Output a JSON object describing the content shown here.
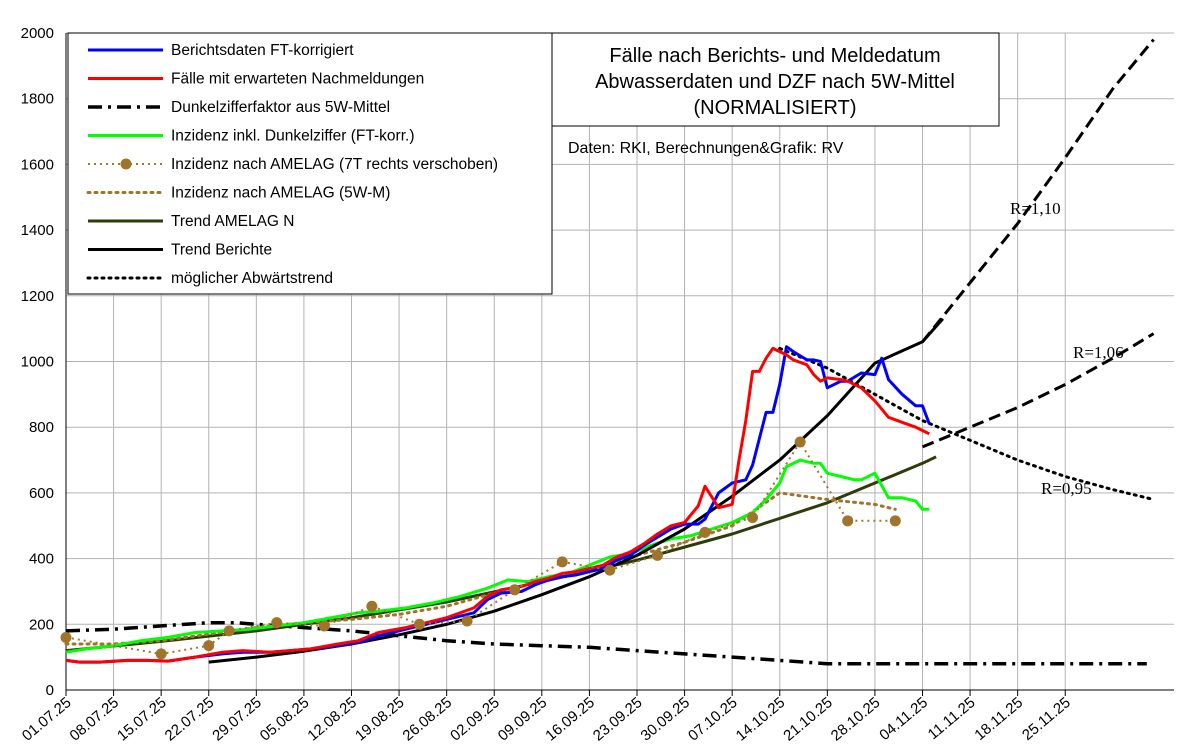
{
  "chart_data": {
    "type": "line",
    "title_lines": [
      "Fälle nach Berichts- und Meldedatum",
      "Abwasserdaten und DZF nach 5W-Mittel",
      "(NORMALISIERT)"
    ],
    "source": "Daten: RKI, Berechnungen&Grafik: RV",
    "ylim": [
      0,
      2000
    ],
    "y_ticks": [
      0,
      200,
      400,
      600,
      800,
      1000,
      1200,
      1400,
      1600,
      1800,
      2000
    ],
    "x_range_dates": [
      "01.07.25",
      "11.12.25"
    ],
    "x_tick_labels": [
      "01.07.25",
      "08.07.25",
      "15.07.25",
      "22.07.25",
      "29.07.25",
      "05.08.25",
      "12.08.25",
      "19.08.25",
      "26.08.25",
      "02.09.25",
      "09.09.25",
      "16.09.25",
      "23.09.25",
      "30.09.25",
      "07.10.25",
      "14.10.25",
      "21.10.25",
      "28.10.25",
      "04.11.25",
      "11.11.25",
      "18.11.25",
      "25.11.25"
    ],
    "grid": true,
    "legend_position": "top-left",
    "colors": {
      "berichtsdaten": "#0000ff",
      "nachmeldungen": "#ff0000",
      "dunkelziffer": "#000000",
      "inzidenz_dz": "#00ff00",
      "amelag": "#a0742a",
      "trend_amelag": "#2e3b0a",
      "trend_berichte": "#000000"
    },
    "series": [
      {
        "name": "Berichtsdaten FT-korrigiert",
        "style": "solid",
        "color": "#0000ff",
        "x": [
          "01.07.25",
          "03.07.25",
          "06.07.25",
          "10.07.25",
          "13.07.25",
          "16.07.25",
          "20.07.25",
          "24.07.25",
          "27.07.25",
          "31.07.25",
          "03.08.25",
          "06.08.25",
          "10.08.25",
          "13.08.25",
          "16.08.25",
          "20.08.25",
          "23.08.25",
          "26.08.25",
          "30.08.25",
          "01.09.25",
          "03.09.25",
          "06.09.25",
          "08.09.25",
          "10.09.25",
          "12.09.25",
          "14.09.25",
          "16.09.25",
          "18.09.25",
          "20.09.25",
          "22.09.25",
          "24.09.25",
          "26.09.25",
          "28.09.25",
          "30.09.25",
          "02.10.25",
          "03.10.25",
          "05.10.25",
          "07.10.25",
          "09.10.25",
          "10.10.25",
          "12.10.25",
          "13.10.25",
          "14.10.25",
          "15.10.25",
          "16.10.25",
          "18.10.25",
          "19.10.25",
          "20.10.25",
          "21.10.25",
          "23.10.25",
          "24.10.25",
          "26.10.25",
          "28.10.25",
          "29.10.25",
          "30.10.25",
          "01.11.25",
          "03.11.25",
          "04.11.25",
          "05.11.25"
        ],
        "values": [
          90,
          85,
          85,
          90,
          90,
          88,
          100,
          110,
          115,
          115,
          120,
          125,
          135,
          145,
          165,
          185,
          200,
          215,
          235,
          275,
          295,
          300,
          320,
          335,
          345,
          350,
          360,
          370,
          395,
          410,
          440,
          465,
          490,
          505,
          505,
          520,
          600,
          630,
          640,
          685,
          845,
          845,
          930,
          1045,
          1030,
          1005,
          1005,
          1000,
          920,
          940,
          940,
          965,
          960,
          1010,
          945,
          900,
          865,
          865,
          810
        ]
      },
      {
        "name": "Fälle mit erwarteten Nachmeldungen",
        "style": "solid",
        "color": "#ff0000",
        "x": [
          "01.07.25",
          "03.07.25",
          "06.07.25",
          "10.07.25",
          "13.07.25",
          "16.07.25",
          "20.07.25",
          "24.07.25",
          "27.07.25",
          "31.07.25",
          "03.08.25",
          "06.08.25",
          "10.08.25",
          "13.08.25",
          "16.08.25",
          "20.08.25",
          "23.08.25",
          "26.08.25",
          "30.08.25",
          "01.09.25",
          "03.09.25",
          "06.09.25",
          "08.09.25",
          "10.09.25",
          "12.09.25",
          "14.09.25",
          "16.09.25",
          "18.09.25",
          "20.09.25",
          "22.09.25",
          "24.09.25",
          "26.09.25",
          "28.09.25",
          "30.09.25",
          "02.10.25",
          "03.10.25",
          "05.10.25",
          "07.10.25",
          "08.10.25",
          "09.10.25",
          "10.10.25",
          "11.10.25",
          "12.10.25",
          "13.10.25",
          "14.10.25",
          "15.10.25",
          "16.10.25",
          "18.10.25",
          "19.10.25",
          "20.10.25",
          "21.10.25",
          "23.10.25",
          "24.10.25",
          "26.10.25",
          "28.10.25",
          "29.10.25",
          "30.10.25",
          "01.11.25",
          "03.11.25",
          "04.11.25",
          "05.11.25"
        ],
        "values": [
          90,
          85,
          85,
          90,
          90,
          88,
          100,
          115,
          120,
          115,
          120,
          125,
          140,
          150,
          175,
          190,
          205,
          220,
          250,
          285,
          305,
          315,
          330,
          340,
          355,
          360,
          370,
          380,
          405,
          420,
          445,
          475,
          500,
          510,
          560,
          620,
          555,
          565,
          700,
          820,
          970,
          970,
          1010,
          1040,
          1030,
          1020,
          1005,
          990,
          960,
          940,
          950,
          945,
          940,
          920,
          880,
          855,
          830,
          815,
          800,
          790,
          780
        ]
      },
      {
        "name": "Dunkelzifferfaktor aus 5W-Mittel",
        "style": "dashdot",
        "color": "#000000",
        "x": [
          "01.07.25",
          "08.07.25",
          "15.07.25",
          "22.07.25",
          "26.07.25",
          "29.07.25",
          "05.08.25",
          "12.08.25",
          "19.08.25",
          "26.08.25",
          "02.09.25",
          "09.09.25",
          "16.09.25",
          "23.09.25",
          "30.09.25",
          "07.10.25",
          "14.10.25",
          "21.10.25",
          "28.10.25",
          "04.11.25",
          "11.11.25",
          "18.11.25",
          "25.11.25",
          "02.12.25",
          "07.12.25"
        ],
        "values": [
          180,
          185,
          195,
          205,
          205,
          200,
          190,
          180,
          165,
          150,
          140,
          135,
          130,
          120,
          110,
          100,
          90,
          80,
          80,
          80,
          80,
          80,
          80,
          80,
          80
        ]
      },
      {
        "name": "Inzidenz inkl. Dunkelziffer (FT-korr.)",
        "style": "solid",
        "color": "#00ff00",
        "x": [
          "01.07.25",
          "04.07.25",
          "08.07.25",
          "12.07.25",
          "16.07.25",
          "20.07.25",
          "24.07.25",
          "28.07.25",
          "01.08.25",
          "05.08.25",
          "09.08.25",
          "13.08.25",
          "16.08.25",
          "20.08.25",
          "24.08.25",
          "28.08.25",
          "01.09.25",
          "04.09.25",
          "07.09.25",
          "10.09.25",
          "13.09.25",
          "16.09.25",
          "19.09.25",
          "22.09.25",
          "25.09.25",
          "28.09.25",
          "01.10.25",
          "04.10.25",
          "07.10.25",
          "10.10.25",
          "12.10.25",
          "14.10.25",
          "15.10.25",
          "17.10.25",
          "19.10.25",
          "20.10.25",
          "21.10.25",
          "23.10.25",
          "25.10.25",
          "26.10.25",
          "28.10.25",
          "30.10.25",
          "01.11.25",
          "03.11.25",
          "04.11.25",
          "05.11.25"
        ],
        "values": [
          115,
          125,
          135,
          150,
          160,
          175,
          180,
          185,
          195,
          205,
          220,
          235,
          240,
          250,
          265,
          285,
          310,
          335,
          330,
          345,
          355,
          380,
          405,
          415,
          440,
          460,
          470,
          490,
          510,
          540,
          580,
          630,
          680,
          700,
          690,
          690,
          660,
          650,
          640,
          640,
          660,
          585,
          585,
          575,
          550,
          550
        ]
      },
      {
        "name": "Inzidenz nach AMELAG (7T rechts verschoben)",
        "style": "dotted-markers",
        "color": "#a0742a",
        "x": [
          "01.07.25",
          "15.07.25",
          "22.07.25",
          "25.07.25",
          "01.08.25",
          "08.08.25",
          "15.08.25",
          "22.08.25",
          "29.08.25",
          "05.09.25",
          "12.09.25",
          "19.09.25",
          "26.09.25",
          "03.10.25",
          "10.10.25",
          "17.10.25",
          "24.10.25",
          "31.10.25"
        ],
        "values": [
          160,
          110,
          135,
          180,
          205,
          195,
          255,
          200,
          210,
          305,
          390,
          365,
          410,
          480,
          525,
          755,
          515,
          515
        ]
      },
      {
        "name": "Inzidenz nach AMELAG (5W-M)",
        "style": "dotted",
        "color": "#a0742a",
        "x": [
          "01.07.25",
          "08.07.25",
          "15.07.25",
          "22.07.25",
          "29.07.25",
          "05.08.25",
          "12.08.25",
          "19.08.25",
          "26.08.25",
          "02.09.25",
          "09.09.25",
          "16.09.25",
          "23.09.25",
          "30.09.25",
          "07.10.25",
          "14.10.25",
          "21.10.25",
          "28.10.25",
          "31.10.25"
        ],
        "values": [
          140,
          140,
          150,
          170,
          190,
          205,
          215,
          230,
          255,
          295,
          330,
          365,
          410,
          450,
          500,
          600,
          580,
          565,
          550
        ]
      },
      {
        "name": "Trend AMELAG N",
        "style": "solid",
        "color": "#2e3b0a",
        "x": [
          "01.07.25",
          "15.07.25",
          "29.07.25",
          "12.08.25",
          "26.08.25",
          "09.09.25",
          "23.09.25",
          "07.10.25",
          "21.10.25",
          "04.11.25",
          "06.11.25"
        ],
        "values": [
          120,
          148,
          180,
          220,
          268,
          330,
          395,
          475,
          570,
          690,
          710
        ]
      },
      {
        "name": "Trend Berichte",
        "style": "solid",
        "color": "#000000",
        "x": [
          "22.07.25",
          "29.07.25",
          "05.08.25",
          "12.08.25",
          "19.08.25",
          "26.08.25",
          "02.09.25",
          "09.09.25",
          "16.09.25",
          "23.09.25",
          "30.09.25",
          "07.10.25",
          "14.10.25",
          "21.10.25",
          "28.10.25",
          "04.11.25",
          "07.11.25"
        ],
        "values": [
          85,
          100,
          118,
          140,
          168,
          200,
          240,
          290,
          345,
          410,
          490,
          590,
          700,
          835,
          995,
          1060,
          1130
        ]
      },
      {
        "name": "möglicher Abwärtstrend",
        "style": "dotted",
        "color": "#000000",
        "x": [
          "14.10.25",
          "21.10.25",
          "28.10.25",
          "04.11.25",
          "11.11.25",
          "18.11.25",
          "25.11.25",
          "02.12.25",
          "08.12.25"
        ],
        "values": [
          1040,
          980,
          900,
          820,
          760,
          700,
          650,
          610,
          580
        ]
      },
      {
        "name": "R=1,10",
        "style": "dashed",
        "color": "#000000",
        "x": [
          "04.11.25",
          "11.11.25",
          "18.11.25",
          "25.11.25",
          "02.12.25",
          "08.12.25"
        ],
        "values": [
          1060,
          1240,
          1420,
          1620,
          1830,
          1980
        ]
      },
      {
        "name": "R=1,06",
        "style": "dashed",
        "color": "#000000",
        "x": [
          "04.11.25",
          "11.11.25",
          "18.11.25",
          "25.11.25",
          "02.12.25",
          "08.12.25"
        ],
        "values": [
          740,
          800,
          860,
          930,
          1010,
          1085
        ]
      }
    ],
    "annotations": [
      "R=1,10",
      "R=1,06",
      "R=0,95"
    ]
  }
}
